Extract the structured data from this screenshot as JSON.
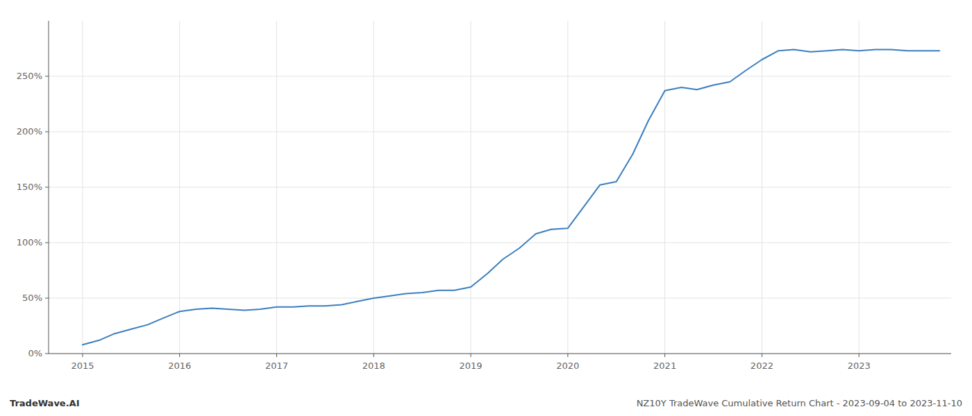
{
  "chart_data": {
    "type": "line",
    "x": [
      2015.0,
      2015.17,
      2015.33,
      2015.5,
      2015.67,
      2015.83,
      2016.0,
      2016.17,
      2016.33,
      2016.5,
      2016.67,
      2016.83,
      2017.0,
      2017.17,
      2017.33,
      2017.5,
      2017.67,
      2017.83,
      2018.0,
      2018.17,
      2018.33,
      2018.5,
      2018.67,
      2018.83,
      2019.0,
      2019.17,
      2019.33,
      2019.5,
      2019.67,
      2019.83,
      2020.0,
      2020.17,
      2020.33,
      2020.5,
      2020.67,
      2020.83,
      2021.0,
      2021.17,
      2021.33,
      2021.5,
      2021.67,
      2021.83,
      2022.0,
      2022.17,
      2022.33,
      2022.5,
      2022.67,
      2022.83,
      2023.0,
      2023.17,
      2023.33,
      2023.5,
      2023.67,
      2023.83
    ],
    "values": [
      8,
      12,
      18,
      22,
      26,
      32,
      38,
      40,
      41,
      40,
      39,
      40,
      42,
      42,
      43,
      43,
      44,
      47,
      50,
      52,
      54,
      55,
      57,
      57,
      60,
      72,
      85,
      95,
      108,
      112,
      113,
      133,
      152,
      155,
      180,
      210,
      237,
      240,
      238,
      242,
      245,
      255,
      265,
      273,
      274,
      272,
      273,
      274,
      273,
      274,
      274,
      273,
      273,
      273
    ],
    "color": "#3a7ebf",
    "xlim": [
      2014.65,
      2023.95
    ],
    "xticks": [
      2015,
      2016,
      2017,
      2018,
      2019,
      2020,
      2021,
      2022,
      2023
    ],
    "ylim": [
      0,
      300
    ],
    "yticks": [
      {
        "value": 0,
        "label": "0%"
      },
      {
        "value": 50,
        "label": "50%"
      },
      {
        "value": 100,
        "label": "100%"
      },
      {
        "value": 150,
        "label": "150%"
      },
      {
        "value": 200,
        "label": "200%"
      },
      {
        "value": 250,
        "label": "250%"
      }
    ],
    "grid": true,
    "annotations": [
      "TradeWave.AI",
      "NZ10Y TradeWave Cumulative Return Chart - 2023-09-04 to 2023-11-10"
    ]
  }
}
